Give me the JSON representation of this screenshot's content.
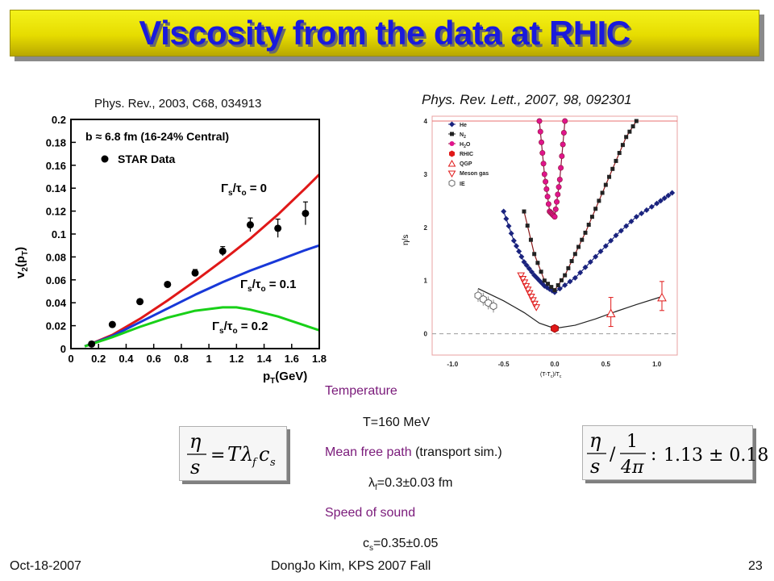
{
  "slide": {
    "title": "Viscosity from the data at RHIC",
    "footer_left": "Oct-18-2007",
    "footer_center": "DongJo Kim, KPS 2007 Fall",
    "footer_right": "23"
  },
  "refs": {
    "left": "Phys. Rev., 2003, C68, 034913",
    "right": "Phys. Rev. Lett., 2007, 98, 092301"
  },
  "left_plot": {
    "ylabel": "v",
    "ylabel_sub": "2",
    "ylabel_tail": "(p",
    "ylabel_tail_sub": "T",
    "ylabel_close": ")",
    "xlabel": "p",
    "xlabel_sub": "T",
    "xlabel_tail": "(GeV)",
    "legend_b": "b ≈ 6.8 fm (16-24% Central)",
    "legend_star": "STAR Data",
    "lab_0": "Γ",
    "lab_0_sub": "s",
    "lab_0_tail": "/τ",
    "lab_0_sub2": "o",
    "lab_0_val": " = 0",
    "lab_1": "Γ",
    "lab_1_sub": "s",
    "lab_1_tail": "/τ",
    "lab_1_sub2": "o",
    "lab_1_val": " = 0.1",
    "lab_2": "Γ",
    "lab_2_sub": "s",
    "lab_2_tail": "/τ",
    "lab_2_sub2": "o",
    "lab_2_val": " = 0.2",
    "colors": {
      "red": "#e01818",
      "blue": "#1838d8",
      "green": "#18d018"
    }
  },
  "right_plot": {
    "ylabel": "η/s",
    "xlabel": "(T-T",
    "xlabel_sub": "c",
    "xlabel_tail": ")/T",
    "xlabel_sub2": "c",
    "legend": [
      "He",
      "N",
      "H",
      "RHIC",
      "QGP",
      "Meson gas",
      "IE"
    ],
    "legend_n2_sub": "2",
    "legend_h2o_sub": "2",
    "legend_h2o_tail": "O"
  },
  "chart_data": [
    {
      "type": "line",
      "xlim": [
        0,
        1.8
      ],
      "ylim": [
        0,
        0.2
      ],
      "xticks": [
        "0",
        "0.2",
        "0.4",
        "0.6",
        "0.8",
        "1",
        "1.2",
        "1.4",
        "1.6",
        "1.8"
      ],
      "yticks": [
        "0",
        "0.02",
        "0.04",
        "0.06",
        "0.08",
        "0.1",
        "0.12",
        "0.14",
        "0.16",
        "0.18",
        "0.2"
      ],
      "series": [
        {
          "name": "STAR Data",
          "x": [
            0.15,
            0.3,
            0.5,
            0.7,
            0.9,
            1.1,
            1.3,
            1.5,
            1.7
          ],
          "y": [
            0.004,
            0.021,
            0.041,
            0.056,
            0.066,
            0.085,
            0.108,
            0.105,
            0.118
          ],
          "err": [
            0.002,
            0.002,
            0.002,
            0.002,
            0.003,
            0.004,
            0.006,
            0.008,
            0.01
          ]
        },
        {
          "name": "Γs/τo = 0",
          "x": [
            0.1,
            0.3,
            0.5,
            0.7,
            0.9,
            1.1,
            1.3,
            1.5,
            1.7,
            1.8
          ],
          "y": [
            0.002,
            0.012,
            0.026,
            0.042,
            0.059,
            0.077,
            0.096,
            0.117,
            0.14,
            0.152
          ]
        },
        {
          "name": "Γs/τo = 0.1",
          "x": [
            0.1,
            0.3,
            0.5,
            0.7,
            0.9,
            1.1,
            1.3,
            1.5,
            1.7,
            1.8
          ],
          "y": [
            0.002,
            0.011,
            0.023,
            0.035,
            0.047,
            0.058,
            0.068,
            0.077,
            0.086,
            0.09
          ]
        },
        {
          "name": "Γs/τo = 0.2",
          "x": [
            0.1,
            0.3,
            0.5,
            0.7,
            0.9,
            1.1,
            1.2,
            1.3,
            1.5,
            1.7,
            1.8
          ],
          "y": [
            0.002,
            0.01,
            0.019,
            0.027,
            0.033,
            0.036,
            0.036,
            0.034,
            0.028,
            0.02,
            0.016
          ]
        }
      ]
    },
    {
      "type": "line",
      "xlim": [
        -1.2,
        1.2
      ],
      "ylim": [
        -0.4,
        4
      ],
      "xticks": [
        "-1.0",
        "-0.5",
        "0.0",
        "0.5",
        "1.0"
      ],
      "yticks": [
        "0",
        "1",
        "2",
        "3",
        "4"
      ],
      "series": [
        {
          "name": "He",
          "x": [
            -0.5,
            -0.4,
            -0.3,
            -0.2,
            -0.1,
            0,
            0.2,
            0.4,
            0.6,
            0.8,
            1.0,
            1.15
          ],
          "y": [
            2.3,
            1.75,
            1.35,
            1.1,
            0.9,
            0.78,
            1.05,
            1.45,
            1.85,
            2.2,
            2.45,
            2.65
          ]
        },
        {
          "name": "N2",
          "x": [
            -0.3,
            -0.2,
            -0.1,
            0,
            0.1,
            0.2,
            0.3,
            0.4,
            0.5,
            0.6,
            0.7,
            0.8
          ],
          "y": [
            2.3,
            1.5,
            1.0,
            0.82,
            1.1,
            1.5,
            1.9,
            2.35,
            2.8,
            3.25,
            3.7,
            4.0
          ]
        },
        {
          "name": "H2O",
          "x": [
            -0.15,
            -0.1,
            -0.05,
            0,
            0.05,
            0.1
          ],
          "y": [
            4.0,
            3.0,
            2.3,
            2.2,
            2.9,
            4.0
          ]
        },
        {
          "name": "RHIC",
          "x": [
            0.0
          ],
          "y": [
            0.1
          ]
        },
        {
          "name": "QGP",
          "x": [
            0.55,
            1.05
          ],
          "y": [
            0.38,
            0.68
          ]
        },
        {
          "name": "Meson gas",
          "x": [
            -0.33,
            -0.28,
            -0.23,
            -0.18
          ],
          "y": [
            1.1,
            0.9,
            0.7,
            0.5
          ]
        },
        {
          "name": "IE",
          "x": [
            -0.75,
            -0.7,
            -0.65,
            -0.6
          ],
          "y": [
            0.72,
            0.65,
            0.58,
            0.52
          ]
        }
      ]
    }
  ],
  "params": {
    "temp_label": "Temperature",
    "temp_value": "T=160 MeV",
    "mfp_label": "Mean free path",
    "mfp_note": " (transport sim.)",
    "mfp_lambda": "λ",
    "mfp_sub": "f",
    "mfp_value": "=0.3±0.03 fm",
    "sound_label": "Speed of sound",
    "sound_c": "c",
    "sound_sub": "s",
    "sound_value": "=0.35±0.05"
  },
  "formula_left": {
    "eta": "η",
    "s": "s",
    "eq": "=",
    "T": "T",
    "lambda": "λ",
    "f": "f",
    "c": "c",
    "cs": "s"
  },
  "formula_right": {
    "eta": "η",
    "s": "s",
    "slash": "/",
    "one": "1",
    "four_pi": "4π",
    "colon": ":",
    "value": "1.13 ± 0.18"
  }
}
